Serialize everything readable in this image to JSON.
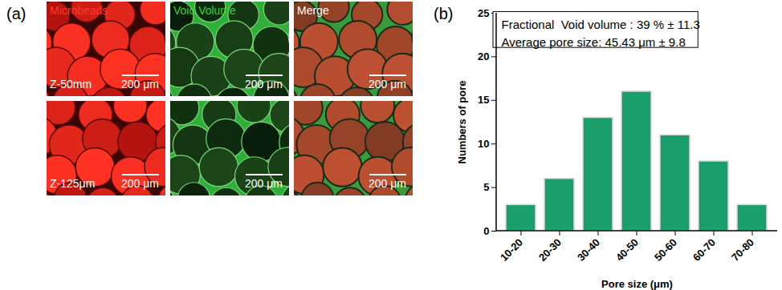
{
  "chart_data": {
    "type": "bar",
    "categories": [
      "10-20",
      "20-30",
      "30-40",
      "40-50",
      "50-60",
      "60-70",
      "70-80"
    ],
    "values": [
      3,
      6,
      13,
      16,
      11,
      8,
      3
    ],
    "color": "#1a9e6a",
    "xlabel": "Pore size (μm)",
    "ylabel": "Numbers of pore",
    "ylim": [
      0,
      25
    ],
    "yticks": [
      0,
      5,
      10,
      15,
      20,
      25
    ],
    "grid": false,
    "annotations": [
      "Fractional  Void volume : 39 % ± 11.3",
      "Average pore size: 45.43 μm ± 9.8"
    ]
  },
  "figure": {
    "panel_labels": [
      "(a)",
      "(b)"
    ],
    "image_grid": {
      "columns": [
        "Microbeads",
        "Void Volume",
        "Merge"
      ],
      "rows": [
        "Z-50mm",
        "Z-125μm"
      ],
      "scale_bar": "200 μm"
    }
  }
}
